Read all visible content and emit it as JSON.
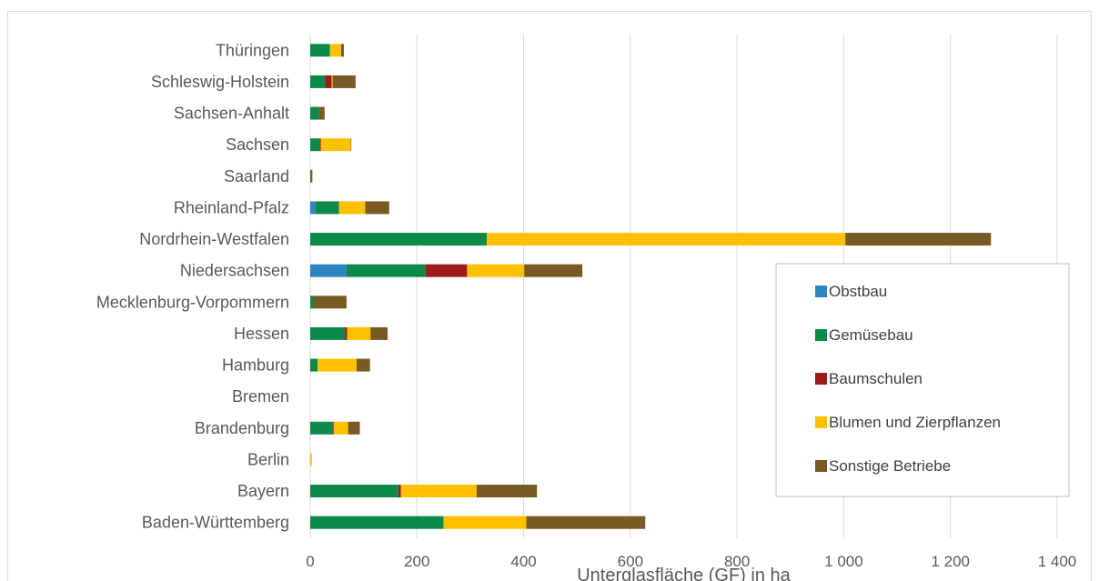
{
  "chart_data": {
    "type": "bar",
    "orientation": "horizontal",
    "stacked": true,
    "title": "",
    "xlabel": "Unterglasfläche (GF) in ha",
    "ylabel": "",
    "xlim": [
      0,
      1400
    ],
    "xticks": [
      0,
      200,
      400,
      600,
      800,
      1000,
      1200,
      1400
    ],
    "xtick_labels": [
      "0",
      "200",
      "400",
      "600",
      "800",
      "1 000",
      "1 200",
      "1 400"
    ],
    "grid": "vertical",
    "legend_position": "right",
    "categories": [
      "Baden-Württemberg",
      "Bayern",
      "Berlin",
      "Brandenburg",
      "Bremen",
      "Hamburg",
      "Hessen",
      "Mecklenburg-Vorpommern",
      "Niedersachsen",
      "Nordrhein-Westfalen",
      "Rheinland-Pfalz",
      "Saarland",
      "Sachsen",
      "Sachsen-Anhalt",
      "Schleswig-Holstein",
      "Thüringen"
    ],
    "series": [
      {
        "name": "Obstbau",
        "color": "#2e86c1",
        "values": [
          0,
          0,
          0,
          0,
          0,
          0,
          0,
          0,
          68,
          0,
          10,
          0,
          0,
          0,
          0,
          0
        ]
      },
      {
        "name": "Gemüsebau",
        "color": "#0c8a4a",
        "values": [
          250,
          165,
          0,
          42,
          0,
          14,
          65,
          6,
          148,
          331,
          44,
          0,
          18,
          16,
          28,
          37
        ]
      },
      {
        "name": "Baumschulen",
        "color": "#9e1b1b",
        "values": [
          0,
          5,
          0,
          2,
          0,
          0,
          4,
          0,
          78,
          0,
          0,
          0,
          2,
          0,
          12,
          0
        ]
      },
      {
        "name": "Blumen und Zierpflanzen",
        "color": "#ffc000",
        "values": [
          155,
          142,
          3,
          27,
          0,
          73,
          44,
          0,
          107,
          672,
          49,
          0,
          56,
          0,
          2,
          21
        ]
      },
      {
        "name": "Sonstige Betriebe",
        "color": "#7a5a24",
        "values": [
          223,
          113,
          0,
          22,
          0,
          25,
          32,
          62,
          109,
          273,
          45,
          4,
          1,
          11,
          43,
          5
        ]
      }
    ]
  }
}
